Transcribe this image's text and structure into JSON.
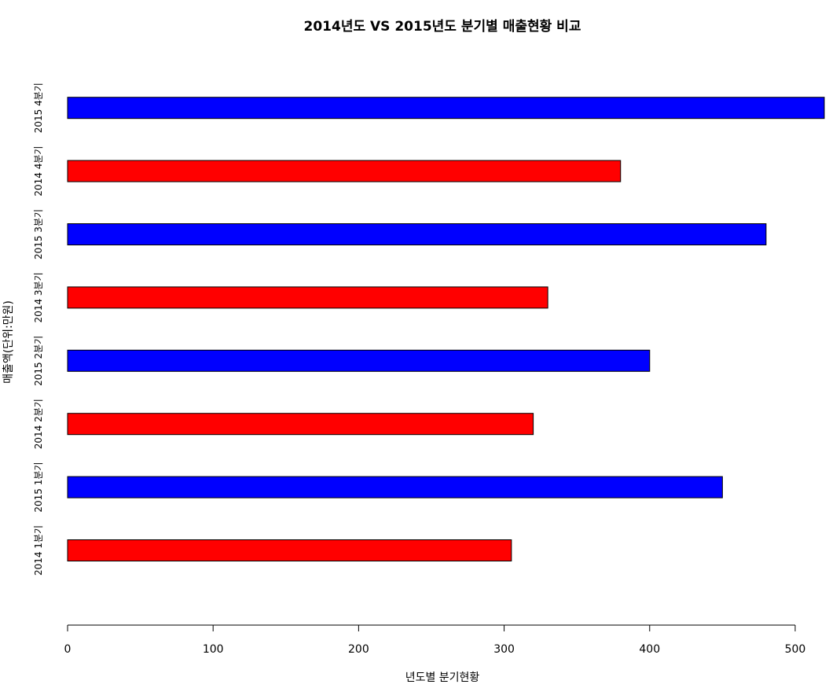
{
  "chart_data": {
    "type": "bar",
    "orientation": "horizontal",
    "title": "2014년도 VS 2015년도 분기별 매출현황 비교",
    "xlabel": "년도별 분기현황",
    "ylabel": "매출액(단위:만원)",
    "categories": [
      "2014 1분기",
      "2015 1분기",
      "2014 2분기",
      "2015 2분기",
      "2014 3분기",
      "2015 3분기",
      "2014 4분기",
      "2015 4분기"
    ],
    "values": [
      305,
      450,
      320,
      400,
      330,
      480,
      380,
      520
    ],
    "bar_colors": [
      "#ff0000",
      "#0000ff",
      "#ff0000",
      "#0000ff",
      "#ff0000",
      "#0000ff",
      "#ff0000",
      "#0000ff"
    ],
    "xlim": [
      0,
      520
    ],
    "xticks": [
      0,
      100,
      200,
      300,
      400,
      500
    ],
    "grid": false,
    "legend": "none"
  }
}
